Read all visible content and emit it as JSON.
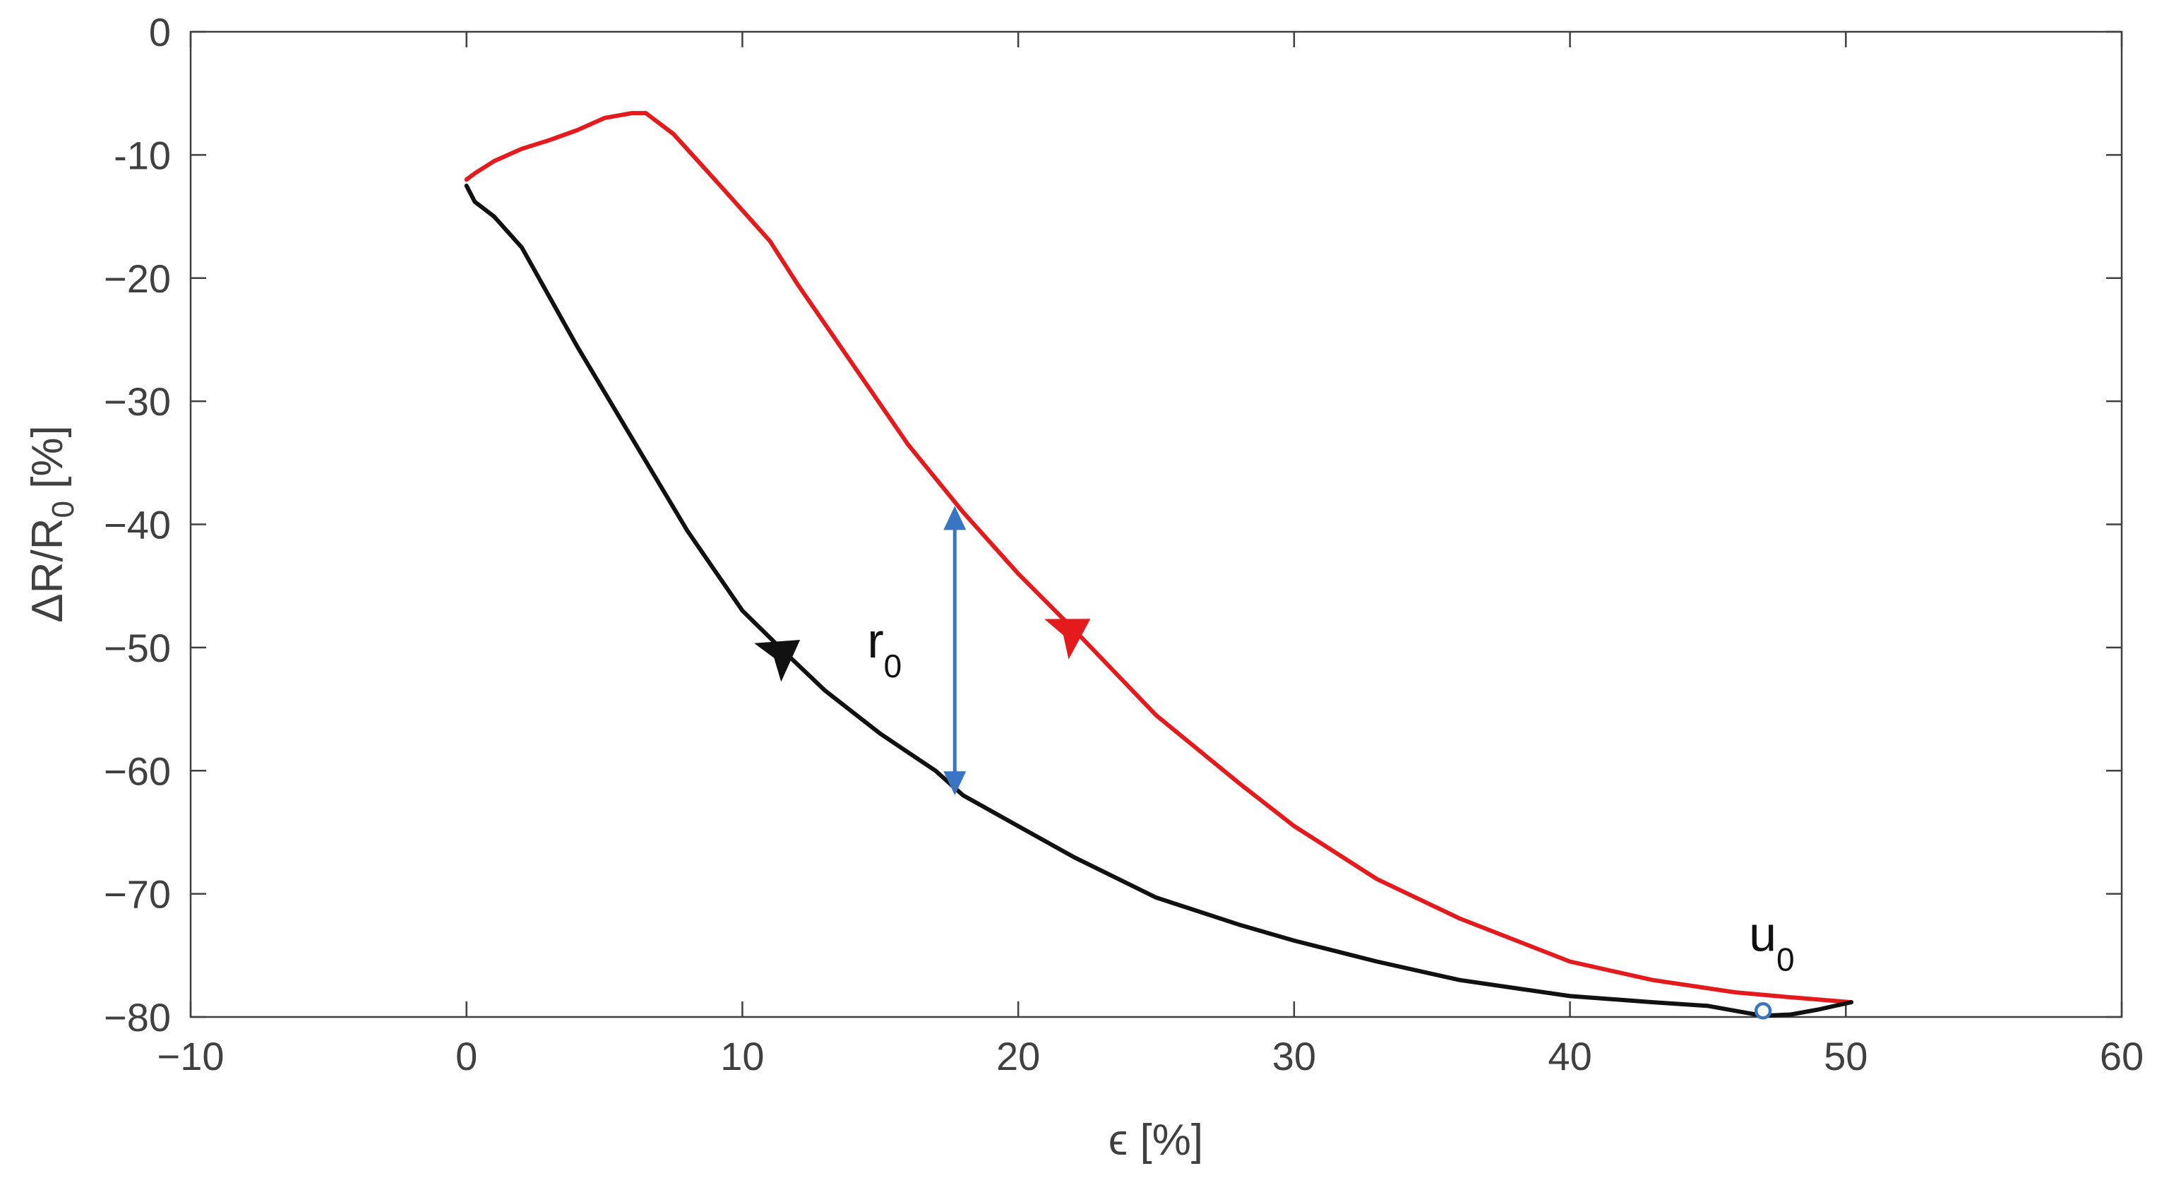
{
  "chart_data": {
    "type": "line",
    "title": "",
    "xlabel": "ϵ [%]",
    "ylabel": "ΔR/R",
    "ylabel_sub": "0",
    "ylabel_suffix": " [%]",
    "xlim": [
      -10,
      60
    ],
    "ylim": [
      -80,
      0
    ],
    "xticks": [
      -10,
      0,
      10,
      20,
      30,
      40,
      50,
      60
    ],
    "xtick_labels": [
      "−10",
      "0",
      "10",
      "20",
      "30",
      "40",
      "50",
      "60"
    ],
    "yticks": [
      0,
      -10,
      -20,
      -30,
      -40,
      -50,
      -60,
      -70,
      -80
    ],
    "ytick_labels": [
      "0",
      "-10",
      "−20",
      "−30",
      "−40",
      "−50",
      "−60",
      "−70",
      "−80"
    ],
    "grid": false,
    "box": true,
    "series": [
      {
        "color": "#e41a1c",
        "direction_arrow": {
          "x": 22,
          "y": -48.5,
          "dx": 1.0,
          "dy": -0.6
        },
        "x": [
          0,
          0.3,
          1,
          2,
          3,
          4,
          5,
          6,
          6.5,
          7.5,
          9,
          10,
          11,
          12,
          14,
          16,
          18,
          20,
          22,
          25,
          28,
          30,
          33,
          36,
          40,
          43,
          46,
          48,
          50.2
        ],
        "y": [
          -12,
          -11.5,
          -10.5,
          -9.5,
          -8.8,
          -8,
          -7,
          -6.6,
          -6.6,
          -8.3,
          -12,
          -14.5,
          -17,
          -20.5,
          -27,
          -33.5,
          -39,
          -44,
          -48.5,
          -55.5,
          -61,
          -64.5,
          -68.8,
          -72,
          -75.5,
          -77,
          -78,
          -78.4,
          -78.8
        ]
      },
      {
        "color": "#111111",
        "direction_arrow": {
          "x": 11.5,
          "y": -50.3,
          "dx": 1.0,
          "dy": -0.7
        },
        "x": [
          0,
          0.3,
          1,
          2,
          3,
          4,
          6,
          8,
          10,
          11.5,
          13,
          15,
          17,
          18,
          20,
          22,
          25,
          28,
          30,
          33,
          36,
          40,
          43,
          45,
          46,
          47,
          48,
          49,
          50.2
        ],
        "y": [
          -12.5,
          -13.8,
          -15,
          -17.5,
          -21.5,
          -25.5,
          -33,
          -40.5,
          -47,
          -50.3,
          -53.5,
          -57,
          -60,
          -62,
          -64.5,
          -67,
          -70.3,
          -72.5,
          -73.8,
          -75.5,
          -77,
          -78.3,
          -78.8,
          -79.1,
          -79.5,
          -79.9,
          -79.8,
          -79.4,
          -78.8
        ]
      }
    ],
    "annotations": [
      {
        "id": "r0",
        "text": "r",
        "sub": "0",
        "x": 17.7,
        "y_top": -38.5,
        "y_bottom": -62,
        "color": "#3a75c4"
      },
      {
        "id": "u0",
        "text": "u",
        "sub": "0",
        "x": 47,
        "y": -79.5,
        "color": "#3a75c4"
      }
    ]
  }
}
